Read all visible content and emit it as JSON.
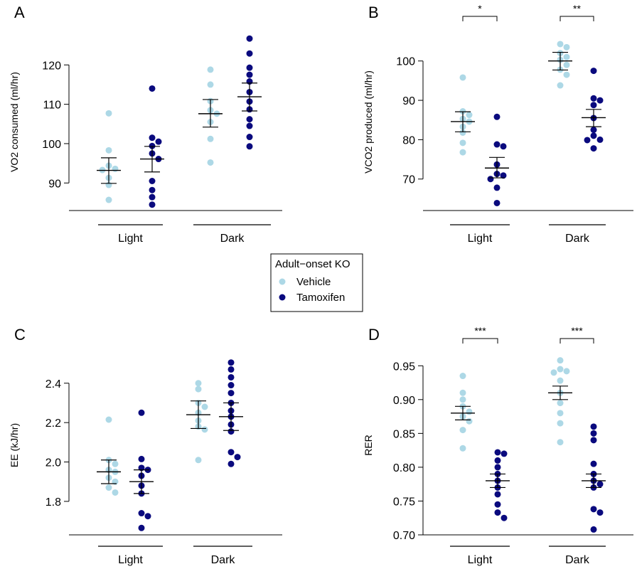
{
  "legend": {
    "title": "Adult−onset KO",
    "items": [
      {
        "label": "Vehicle",
        "color": "#add8e6"
      },
      {
        "label": "Tamoxifen",
        "color": "#0a0a7e"
      }
    ],
    "placement": "center"
  },
  "colors": {
    "vehicle": "#add8e6",
    "tamoxifen": "#0a0a7e"
  },
  "chart_data": [
    {
      "panel": "A",
      "type": "scatter",
      "ylabel": "VO2 consumed (ml/hr)",
      "categories": [
        "Light",
        "Dark"
      ],
      "ylim": [
        83,
        128
      ],
      "yticks": [
        90,
        100,
        110,
        120
      ],
      "groups": [
        {
          "category": "Light",
          "series": "Vehicle",
          "mean": 93.2,
          "sem_low": 89.9,
          "sem_high": 96.4,
          "points": [
            107.7,
            98.3,
            94.4,
            93.6,
            93.3,
            91.3,
            89.5,
            85.7
          ]
        },
        {
          "category": "Light",
          "series": "Tamoxifen",
          "mean": 96.1,
          "sem_low": 92.8,
          "sem_high": 99.3,
          "points": [
            114.0,
            101.5,
            100.5,
            99.4,
            97.5,
            96.1,
            90.5,
            88.2,
            86.4,
            84.5
          ]
        },
        {
          "category": "Dark",
          "series": "Vehicle",
          "mean": 107.6,
          "sem_low": 104.2,
          "sem_high": 111.2,
          "points": [
            118.8,
            115.0,
            110.8,
            108.5,
            107.6,
            105.5,
            101.2,
            95.2
          ]
        },
        {
          "category": "Dark",
          "series": "Tamoxifen",
          "mean": 111.9,
          "sem_low": 108.3,
          "sem_high": 115.4,
          "points": [
            126.7,
            122.9,
            119.3,
            117.5,
            115.8,
            113.1,
            110.7,
            108.7,
            106.2,
            104.5,
            101.7,
            99.3
          ]
        }
      ],
      "significance": []
    },
    {
      "panel": "B",
      "type": "scatter",
      "ylabel": "VCO2 produced (ml/hr)",
      "categories": [
        "Light",
        "Dark"
      ],
      "ylim": [
        62,
        107
      ],
      "yticks": [
        70,
        80,
        90,
        100
      ],
      "groups": [
        {
          "category": "Light",
          "series": "Vehicle",
          "mean": 84.6,
          "sem_low": 82.0,
          "sem_high": 87.1,
          "points": [
            95.8,
            87.2,
            86.3,
            85.3,
            84.6,
            83.3,
            81.8,
            79.2,
            76.8
          ]
        },
        {
          "category": "Light",
          "series": "Tamoxifen",
          "mean": 72.8,
          "sem_low": 70.3,
          "sem_high": 75.5,
          "points": [
            85.8,
            78.8,
            78.3,
            73.7,
            71.3,
            70.9,
            70.0,
            67.8,
            63.9
          ]
        },
        {
          "category": "Dark",
          "series": "Vehicle",
          "mean": 100.0,
          "sem_low": 97.7,
          "sem_high": 102.2,
          "points": [
            104.3,
            103.5,
            102.0,
            101.0,
            100.3,
            99.0,
            97.8,
            96.5,
            93.8
          ]
        },
        {
          "category": "Dark",
          "series": "Tamoxifen",
          "mean": 85.6,
          "sem_low": 83.3,
          "sem_high": 87.7,
          "points": [
            97.5,
            90.5,
            90.0,
            88.8,
            85.5,
            82.5,
            81.0,
            80.0,
            79.9,
            77.8
          ]
        }
      ],
      "significance": [
        {
          "category": "Light",
          "label": "*"
        },
        {
          "category": "Dark",
          "label": "**"
        }
      ]
    },
    {
      "panel": "C",
      "type": "scatter",
      "ylabel": "EE (kJ/hr)",
      "categories": [
        "Light",
        "Dark"
      ],
      "ylim": [
        1.63,
        2.54
      ],
      "yticks": [
        1.8,
        2.0,
        2.2,
        2.4
      ],
      "ytick_labels": [
        "1.8",
        "2.0",
        "2.2",
        "2.4"
      ],
      "groups": [
        {
          "category": "Light",
          "series": "Vehicle",
          "mean": 1.95,
          "sem_low": 1.89,
          "sem_high": 2.01,
          "points": [
            2.215,
            2.01,
            1.99,
            1.96,
            1.95,
            1.92,
            1.9,
            1.87,
            1.845
          ]
        },
        {
          "category": "Light",
          "series": "Tamoxifen",
          "mean": 1.9,
          "sem_low": 1.84,
          "sem_high": 1.96,
          "points": [
            2.25,
            2.015,
            1.97,
            1.96,
            1.93,
            1.88,
            1.84,
            1.74,
            1.725,
            1.665
          ]
        },
        {
          "category": "Dark",
          "series": "Vehicle",
          "mean": 2.24,
          "sem_low": 2.17,
          "sem_high": 2.31,
          "points": [
            2.4,
            2.37,
            2.3,
            2.28,
            2.25,
            2.21,
            2.18,
            2.165,
            2.01
          ]
        },
        {
          "category": "Dark",
          "series": "Tamoxifen",
          "mean": 2.23,
          "sem_low": 2.16,
          "sem_high": 2.3,
          "points": [
            2.505,
            2.47,
            2.43,
            2.39,
            2.35,
            2.3,
            2.26,
            2.23,
            2.19,
            2.155,
            2.05,
            2.025,
            1.99
          ]
        }
      ],
      "significance": []
    },
    {
      "panel": "D",
      "type": "scatter",
      "ylabel": "RER",
      "categories": [
        "Light",
        "Dark"
      ],
      "ylim": [
        0.7,
        0.965
      ],
      "yticks": [
        0.7,
        0.75,
        0.8,
        0.85,
        0.9,
        0.95
      ],
      "ytick_labels": [
        "0.70",
        "0.75",
        "0.80",
        "0.85",
        "0.90",
        "0.95"
      ],
      "groups": [
        {
          "category": "Light",
          "series": "Vehicle",
          "mean": 0.88,
          "sem_low": 0.87,
          "sem_high": 0.89,
          "points": [
            0.935,
            0.91,
            0.9,
            0.89,
            0.882,
            0.875,
            0.868,
            0.855,
            0.828
          ]
        },
        {
          "category": "Light",
          "series": "Tamoxifen",
          "mean": 0.78,
          "sem_low": 0.77,
          "sem_high": 0.79,
          "points": [
            0.822,
            0.82,
            0.81,
            0.8,
            0.79,
            0.78,
            0.77,
            0.76,
            0.745,
            0.733,
            0.725
          ]
        },
        {
          "category": "Dark",
          "series": "Vehicle",
          "mean": 0.91,
          "sem_low": 0.9,
          "sem_high": 0.92,
          "points": [
            0.958,
            0.945,
            0.942,
            0.94,
            0.928,
            0.91,
            0.895,
            0.88,
            0.865,
            0.837
          ]
        },
        {
          "category": "Dark",
          "series": "Tamoxifen",
          "mean": 0.78,
          "sem_low": 0.77,
          "sem_high": 0.79,
          "points": [
            0.86,
            0.85,
            0.84,
            0.805,
            0.79,
            0.78,
            0.775,
            0.77,
            0.738,
            0.733,
            0.708
          ]
        }
      ],
      "significance": [
        {
          "category": "Light",
          "label": "***"
        },
        {
          "category": "Dark",
          "label": "***"
        }
      ]
    }
  ]
}
